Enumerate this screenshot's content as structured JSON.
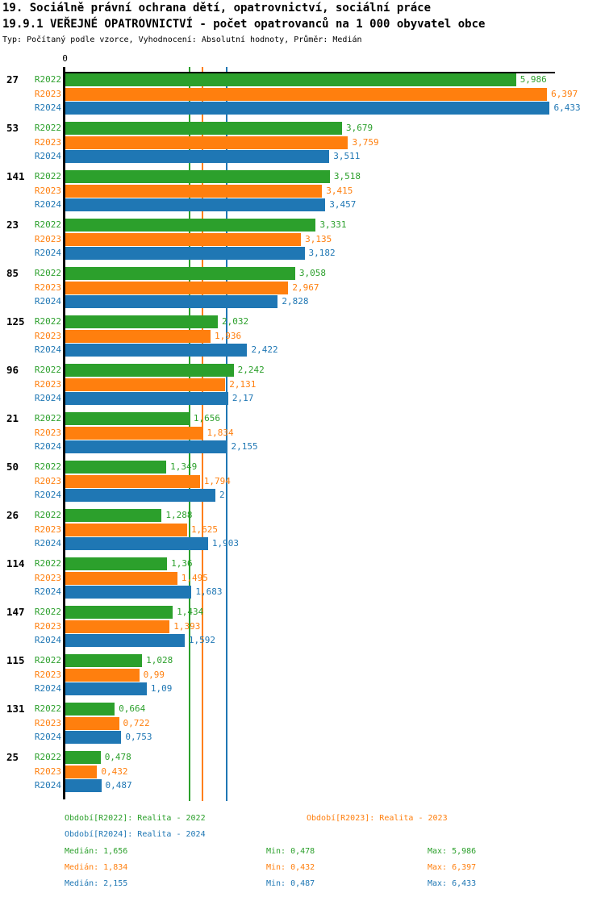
{
  "header": {
    "title_line1": "19. Sociálně právní ochrana dětí, opatrovnictví, sociální práce",
    "title_line2": "19.9.1 VEŘEJNÉ OPATROVNICTVÍ - počet opatrovanců na 1 000 obyvatel obce",
    "subtitle": "Typ: Počítaný podle vzorce, Vyhodnocení: Absolutní hodnoty, Průměr: Medián"
  },
  "chart_data": {
    "type": "bar",
    "orientation": "horizontal",
    "title": "19.9.1 VEŘEJNÉ OPATROVNICTVÍ - počet opatrovanců na 1 000 obyvatel obce",
    "value_axis": {
      "zero_label": "0",
      "xlim": [
        0,
        6.5
      ],
      "decimal_separator": ",",
      "grid": false
    },
    "legend_position": "bottom",
    "series": [
      {
        "name": "R2022",
        "color": "#2ca02c",
        "median": 1.656,
        "min": 0.478,
        "max": 5.986
      },
      {
        "name": "R2023",
        "color": "#ff7f0e",
        "median": 1.834,
        "min": 0.432,
        "max": 6.397
      },
      {
        "name": "R2024",
        "color": "#1f77b4",
        "median": 2.155,
        "min": 0.487,
        "max": 6.433
      }
    ],
    "groups": [
      {
        "label": "27",
        "values": [
          5.986,
          6.397,
          6.433
        ]
      },
      {
        "label": "53",
        "values": [
          3.679,
          3.759,
          3.511
        ]
      },
      {
        "label": "141",
        "values": [
          3.518,
          3.415,
          3.457
        ]
      },
      {
        "label": "23",
        "values": [
          3.331,
          3.135,
          3.182
        ]
      },
      {
        "label": "85",
        "values": [
          3.058,
          2.967,
          2.828
        ]
      },
      {
        "label": "125",
        "values": [
          2.032,
          1.936,
          2.422
        ]
      },
      {
        "label": "96",
        "values": [
          2.242,
          2.131,
          2.17
        ]
      },
      {
        "label": "21",
        "values": [
          1.656,
          1.834,
          2.155
        ]
      },
      {
        "label": "50",
        "values": [
          1.349,
          1.794,
          2
        ]
      },
      {
        "label": "26",
        "values": [
          1.288,
          1.625,
          1.903
        ]
      },
      {
        "label": "114",
        "values": [
          1.36,
          1.495,
          1.683
        ]
      },
      {
        "label": "147",
        "values": [
          1.434,
          1.393,
          1.592
        ]
      },
      {
        "label": "115",
        "values": [
          1.028,
          0.99,
          1.09
        ]
      },
      {
        "label": "131",
        "values": [
          0.664,
          0.722,
          0.753
        ]
      },
      {
        "label": "25",
        "values": [
          0.478,
          0.432,
          0.487
        ]
      }
    ]
  },
  "legend": {
    "items": [
      {
        "label": "Období[R2022]: Realita - 2022",
        "series": 0
      },
      {
        "label": "Období[R2023]: Realita - 2023",
        "series": 1
      },
      {
        "label": "Období[R2024]: Realita - 2024",
        "series": 2
      }
    ],
    "stats_rows": [
      {
        "series": 0,
        "median": "Medián: 1,656",
        "min": "Min: 0,478",
        "max": "Max: 5,986"
      },
      {
        "series": 1,
        "median": "Medián: 1,834",
        "min": "Min: 0,432",
        "max": "Max: 6,397"
      },
      {
        "series": 2,
        "median": "Medián: 2,155",
        "min": "Min: 0,487",
        "max": "Max: 6,433"
      }
    ]
  }
}
